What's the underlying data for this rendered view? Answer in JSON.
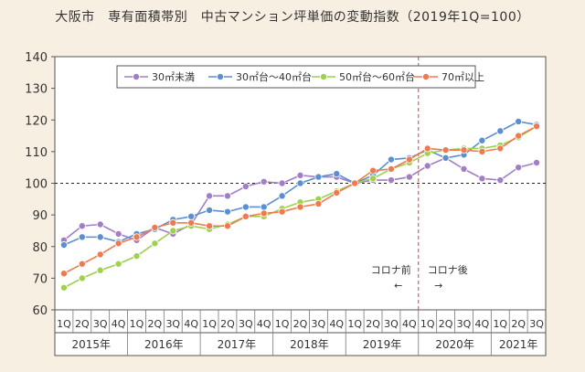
{
  "chart_data": {
    "type": "line",
    "title": "大阪市　専有面積帯別　中古マンション坪単価の変動指数（2019年1Q=100）",
    "xlabel": "",
    "ylabel": "",
    "ylim": [
      60,
      140
    ],
    "yticks": [
      60,
      70,
      80,
      90,
      100,
      110,
      120,
      130,
      140
    ],
    "grid": false,
    "legend_position": "top",
    "reference_line": 100,
    "quarters": [
      "1Q",
      "2Q",
      "3Q",
      "4Q",
      "1Q",
      "2Q",
      "3Q",
      "4Q",
      "1Q",
      "2Q",
      "3Q",
      "4Q",
      "1Q",
      "2Q",
      "3Q",
      "4Q",
      "1Q",
      "2Q",
      "3Q",
      "4Q",
      "1Q",
      "2Q",
      "3Q",
      "4Q",
      "1Q",
      "2Q",
      "3Q"
    ],
    "years": [
      {
        "label": "2015年",
        "start": 0,
        "count": 4
      },
      {
        "label": "2016年",
        "start": 4,
        "count": 4
      },
      {
        "label": "2017年",
        "start": 8,
        "count": 4
      },
      {
        "label": "2018年",
        "start": 12,
        "count": 4
      },
      {
        "label": "2019年",
        "start": 16,
        "count": 4
      },
      {
        "label": "2020年",
        "start": 20,
        "count": 4
      },
      {
        "label": "2021年",
        "start": 24,
        "count": 3
      }
    ],
    "annotations": {
      "before_label": "コロナ前",
      "before_arrow": "←",
      "after_label": "コロナ後",
      "after_arrow": "→",
      "divider_after_index": 19
    },
    "series": [
      {
        "name": "30㎡未満",
        "color": "#a27ec6",
        "values": [
          82,
          86.5,
          87,
          84,
          82,
          86,
          84,
          87,
          96,
          96,
          99,
          100.5,
          100,
          102.5,
          102,
          102,
          100,
          101,
          101,
          102,
          105.5,
          108,
          104.5,
          101.5,
          101,
          105,
          106.5
        ]
      },
      {
        "name": "30㎡台～40㎡台",
        "color": "#5b8fd0",
        "values": [
          80.5,
          83,
          83,
          81.5,
          84,
          85.5,
          88.5,
          89.5,
          91.5,
          91,
          92.5,
          92.5,
          96,
          100,
          102,
          103,
          100,
          102.5,
          107.5,
          108,
          110.5,
          108,
          109,
          113.5,
          116.5,
          119.5,
          118.5
        ]
      },
      {
        "name": "50㎡台～60㎡台",
        "color": "#9dd14e",
        "values": [
          67,
          70,
          72.5,
          74.5,
          77,
          81,
          85,
          86.5,
          85.5,
          87,
          89.5,
          89.5,
          92,
          94,
          95,
          97.5,
          100,
          101.5,
          104.5,
          106.5,
          109.5,
          110.5,
          111,
          111,
          112,
          114.5,
          118
        ]
      },
      {
        "name": "70㎡以上",
        "color": "#ef7a4e",
        "values": [
          71.5,
          74.5,
          77.5,
          81,
          83,
          86,
          87.5,
          87.5,
          86.5,
          86.5,
          89.5,
          90.5,
          91,
          92.5,
          93.5,
          97,
          100,
          104,
          104.5,
          107.5,
          111,
          110.5,
          110.5,
          110,
          111,
          115,
          118
        ]
      }
    ]
  }
}
